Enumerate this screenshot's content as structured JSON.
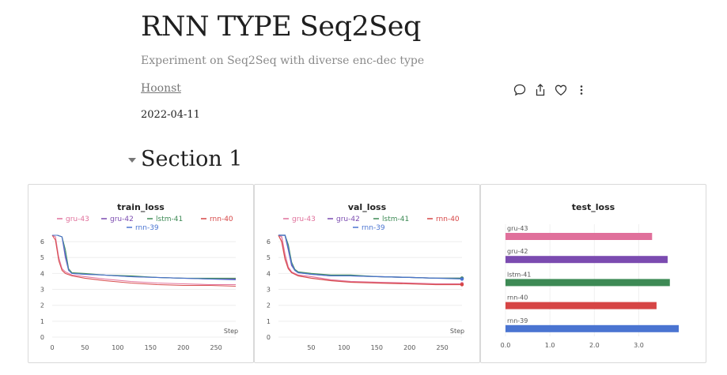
{
  "header": {
    "title": "RNN TYPE Seq2Seq",
    "subtitle": "Experiment on Seq2Seq with diverse enc-dec type",
    "author": "Hoonst",
    "date": "2022-04-11"
  },
  "actions": [
    "comment-icon",
    "share-icon",
    "heart-icon",
    "more-icon"
  ],
  "section": {
    "title": "Section 1"
  },
  "colors": {
    "gru-43": "#e0709b",
    "gru-42": "#7b4bb0",
    "lstm-41": "#3d8a55",
    "rnn-40": "#d64545",
    "rnn-39": "#4a74d1"
  },
  "chart_data": [
    {
      "type": "line",
      "title": "train_loss",
      "xlabel": "Step",
      "xlim": [
        0,
        280
      ],
      "ylim": [
        0,
        6.5
      ],
      "xticks": [
        0,
        50,
        100,
        150,
        200,
        250
      ],
      "yticks": [
        0,
        1,
        2,
        3,
        4,
        5,
        6
      ],
      "legend": [
        "gru-43",
        "gru-42",
        "lstm-41",
        "rnn-40",
        "rnn-39"
      ],
      "series": [
        {
          "name": "gru-43",
          "x": [
            0,
            5,
            10,
            15,
            20,
            30,
            50,
            80,
            120,
            160,
            200,
            240,
            280
          ],
          "y": [
            6.4,
            6.3,
            5.0,
            4.3,
            4.1,
            3.9,
            3.8,
            3.65,
            3.5,
            3.4,
            3.35,
            3.3,
            3.3
          ]
        },
        {
          "name": "gru-42",
          "x": [
            0,
            8,
            15,
            20,
            25,
            30,
            50,
            80,
            120,
            160,
            200,
            240,
            280
          ],
          "y": [
            6.4,
            6.4,
            6.3,
            5.0,
            4.2,
            4.0,
            3.95,
            3.9,
            3.8,
            3.75,
            3.7,
            3.65,
            3.65
          ]
        },
        {
          "name": "lstm-41",
          "x": [
            0,
            8,
            15,
            20,
            25,
            30,
            50,
            80,
            120,
            160,
            200,
            240,
            280
          ],
          "y": [
            6.4,
            6.4,
            6.3,
            5.5,
            4.3,
            4.05,
            4.0,
            3.9,
            3.85,
            3.75,
            3.7,
            3.7,
            3.7
          ]
        },
        {
          "name": "rnn-40",
          "x": [
            0,
            5,
            10,
            15,
            20,
            30,
            50,
            80,
            120,
            160,
            200,
            240,
            280
          ],
          "y": [
            6.4,
            6.1,
            4.8,
            4.2,
            4.0,
            3.85,
            3.7,
            3.55,
            3.4,
            3.3,
            3.25,
            3.25,
            3.2
          ]
        },
        {
          "name": "rnn-39",
          "x": [
            0,
            8,
            15,
            20,
            25,
            30,
            50,
            80,
            120,
            160,
            200,
            240,
            280
          ],
          "y": [
            6.4,
            6.4,
            6.3,
            5.2,
            4.2,
            4.0,
            3.95,
            3.9,
            3.8,
            3.75,
            3.7,
            3.65,
            3.6
          ]
        }
      ]
    },
    {
      "type": "line",
      "title": "val_loss",
      "xlabel": "Step",
      "xlim": [
        0,
        280
      ],
      "ylim": [
        0,
        6.5
      ],
      "xticks": [
        50,
        100,
        150,
        200,
        250
      ],
      "yticks": [
        0,
        1,
        2,
        3,
        4,
        5,
        6
      ],
      "legend": [
        "gru-43",
        "gru-42",
        "lstm-41",
        "rnn-40",
        "rnn-39"
      ],
      "series": [
        {
          "name": "gru-43",
          "x": [
            0,
            5,
            10,
            15,
            20,
            30,
            50,
            80,
            110,
            150,
            200,
            240,
            280
          ],
          "y": [
            6.4,
            6.3,
            5.2,
            4.4,
            4.1,
            3.9,
            3.8,
            3.6,
            3.5,
            3.45,
            3.4,
            3.35,
            3.35
          ]
        },
        {
          "name": "gru-42",
          "x": [
            0,
            10,
            15,
            20,
            25,
            30,
            50,
            80,
            110,
            150,
            200,
            240,
            280
          ],
          "y": [
            6.4,
            6.4,
            5.5,
            4.5,
            4.2,
            4.05,
            3.95,
            3.85,
            3.85,
            3.8,
            3.75,
            3.7,
            3.7
          ]
        },
        {
          "name": "lstm-41",
          "x": [
            0,
            10,
            15,
            20,
            25,
            30,
            50,
            80,
            110,
            150,
            200,
            240,
            280
          ],
          "y": [
            6.4,
            6.4,
            5.8,
            4.7,
            4.25,
            4.1,
            4.0,
            3.9,
            3.9,
            3.8,
            3.75,
            3.7,
            3.7
          ]
        },
        {
          "name": "rnn-40",
          "x": [
            0,
            5,
            10,
            15,
            20,
            30,
            50,
            80,
            110,
            150,
            200,
            240,
            280
          ],
          "y": [
            6.4,
            6.0,
            4.9,
            4.3,
            4.05,
            3.85,
            3.7,
            3.55,
            3.45,
            3.4,
            3.35,
            3.3,
            3.3
          ]
        },
        {
          "name": "rnn-39",
          "x": [
            0,
            10,
            15,
            20,
            25,
            30,
            50,
            80,
            110,
            150,
            200,
            240,
            280
          ],
          "y": [
            6.4,
            6.4,
            5.6,
            4.6,
            4.2,
            4.05,
            3.95,
            3.85,
            3.85,
            3.8,
            3.75,
            3.7,
            3.65
          ]
        }
      ]
    },
    {
      "type": "bar",
      "orientation": "horizontal",
      "title": "test_loss",
      "categories": [
        "gru-43",
        "gru-42",
        "lstm-41",
        "rnn-40",
        "rnn-39"
      ],
      "values": [
        3.3,
        3.65,
        3.7,
        3.4,
        3.9
      ],
      "xlim": [
        0,
        3.9
      ],
      "xticks": [
        0,
        1,
        2,
        3
      ],
      "xtick_labels": [
        "0.0",
        "1.0",
        "2.0",
        "3.0"
      ]
    }
  ]
}
